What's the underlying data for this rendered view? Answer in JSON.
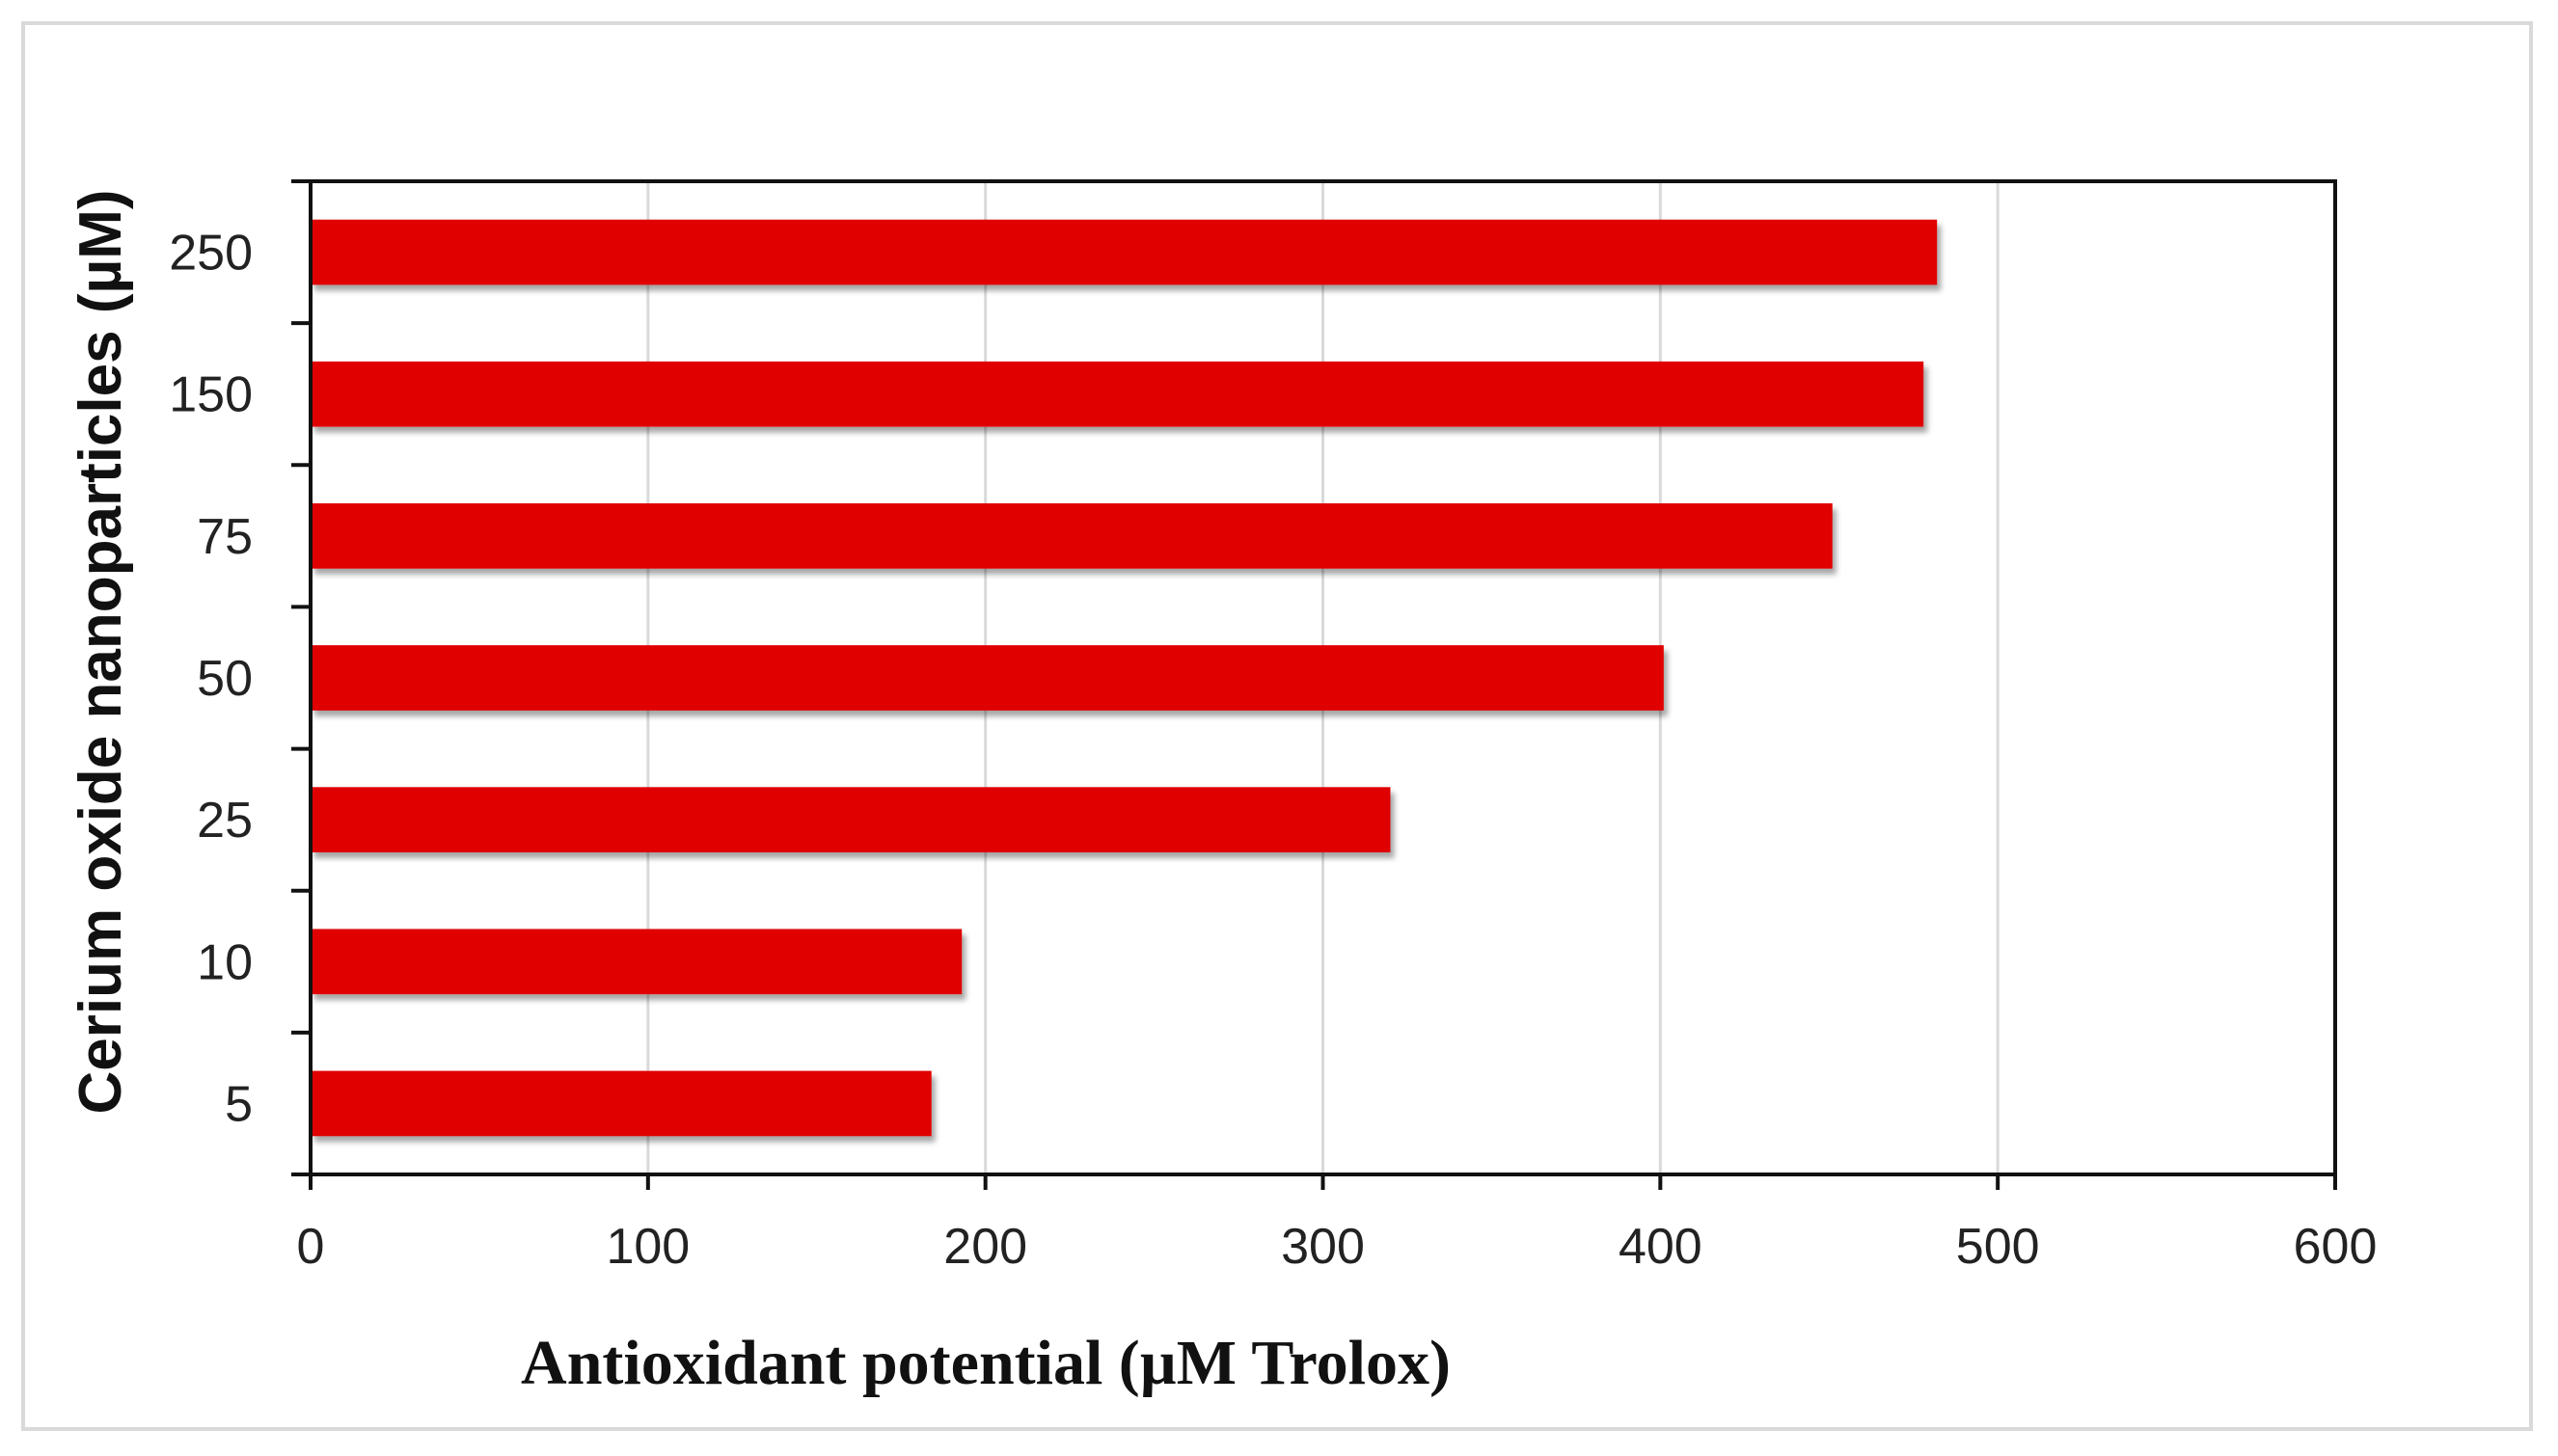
{
  "chart_data": {
    "type": "bar",
    "orientation": "horizontal",
    "title": "",
    "xlabel": "Antioxidant potential (µM Trolox)",
    "ylabel": "Cerium oxide nanoparticles (µM)",
    "categories": [
      "5",
      "10",
      "25",
      "50",
      "75",
      "150",
      "250"
    ],
    "values": [
      184,
      193,
      320,
      401,
      451,
      478,
      482
    ],
    "xlim": [
      0,
      600
    ],
    "xticks": [
      "0",
      "100",
      "200",
      "300",
      "400",
      "500",
      "600"
    ],
    "grid": "vertical",
    "legend": "none",
    "colors": {
      "bar": "#e00000",
      "grid": "#d9d9d9",
      "axis": "#111111"
    }
  }
}
